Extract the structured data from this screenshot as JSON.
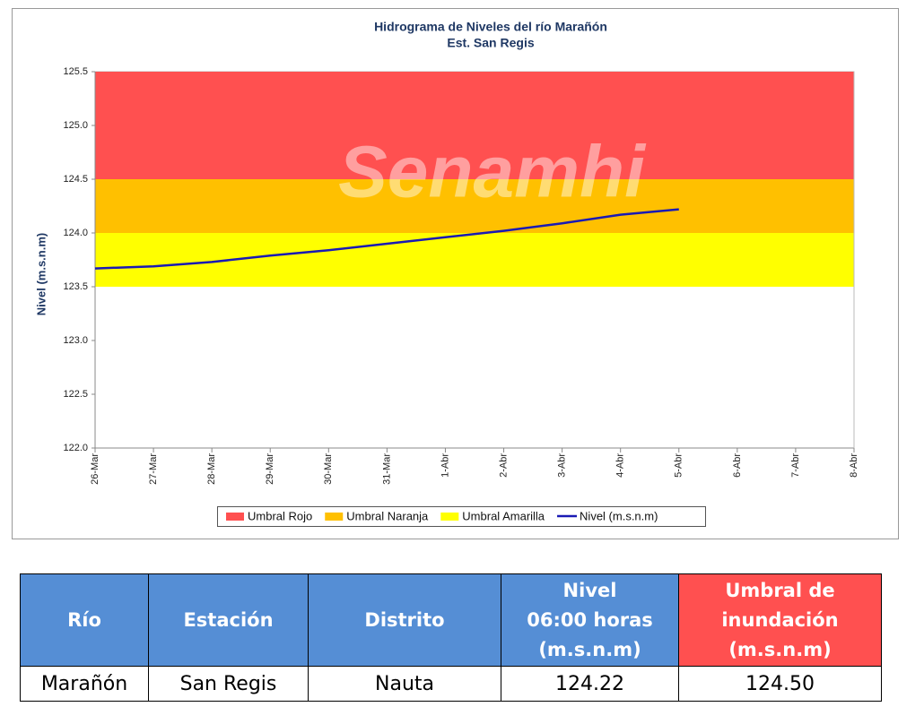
{
  "chart_data": {
    "type": "line",
    "title": "Hidrograma de Niveles del río Marañón",
    "subtitle": "Est. San Regis",
    "watermark": "Senamhi",
    "y_label": "Nivel (m.s.n.m)",
    "categories": [
      "26-Mar",
      "27-Mar",
      "28-Mar",
      "29-Mar",
      "30-Mar",
      "31-Mar",
      "1-Abr",
      "2-Abr",
      "3-Abr",
      "4-Abr",
      "5-Abr",
      "6-Abr",
      "7-Abr",
      "8-Abr"
    ],
    "bands": [
      {
        "name": "Umbral Rojo",
        "color": "#ff5050",
        "range": [
          124.5,
          125.5
        ]
      },
      {
        "name": "Umbral Naranja",
        "color": "#ffc000",
        "range": [
          124.0,
          124.5
        ]
      },
      {
        "name": "Umbral Amarilla",
        "color": "#ffff00",
        "range": [
          123.5,
          124.0
        ]
      }
    ],
    "series": [
      {
        "name": "Nivel (m.s.n.m)",
        "color": "#1a1ab4",
        "values": [
          123.67,
          123.69,
          123.73,
          123.79,
          123.84,
          123.9,
          123.96,
          124.02,
          124.09,
          124.17,
          124.22,
          null,
          null,
          null
        ]
      }
    ],
    "ylim": [
      122,
      125.5
    ],
    "yticks": [
      {
        "value": 122,
        "label": "122.0"
      },
      122.5,
      {
        "value": 123,
        "label": "123.0"
      },
      123.5,
      {
        "value": 124,
        "label": "124.0"
      },
      124.5,
      {
        "value": 125,
        "label": "125.0"
      },
      125.5
    ],
    "legend": "bottom"
  },
  "table": {
    "header": [
      "Río",
      "Estación",
      "Distrito",
      "Nivel\n06:00 horas\n(m.s.n.m)",
      "Umbral de\ninundación\n(m.s.n.m)"
    ],
    "rows": [
      [
        "Marañón",
        "San Regis",
        "Nauta",
        "124.22",
        "124.50"
      ]
    ]
  }
}
